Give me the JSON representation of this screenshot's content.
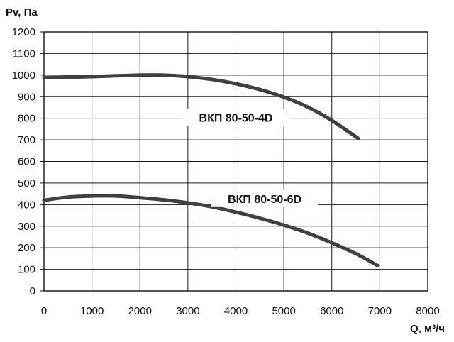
{
  "chart_data": {
    "type": "line",
    "ylabel": "Pv, Па",
    "xlabel": "Q, м³/ч",
    "xlim": [
      0,
      8000
    ],
    "ylim": [
      0,
      1200
    ],
    "x_ticks": [
      0,
      1000,
      2000,
      3000,
      4000,
      5000,
      6000,
      7000,
      8000
    ],
    "y_ticks": [
      0,
      100,
      200,
      300,
      400,
      500,
      600,
      700,
      800,
      900,
      1000,
      1100,
      1200
    ],
    "grid": true,
    "legend": "none",
    "series": [
      {
        "name": "ВКП 80-50-4D",
        "color": "#404040",
        "x": [
          0,
          500,
          1000,
          1500,
          2000,
          2500,
          3000,
          3500,
          4000,
          4500,
          5000,
          5500,
          6000,
          6550
        ],
        "y": [
          988,
          990,
          993,
          997,
          1000,
          1000,
          993,
          980,
          960,
          933,
          898,
          852,
          790,
          707
        ]
      },
      {
        "name": "ВКП 80-50-6D",
        "color": "#404040",
        "x": [
          0,
          500,
          1000,
          1500,
          2000,
          2500,
          3000,
          3500,
          4000,
          4500,
          5000,
          5500,
          6000,
          6500,
          6950
        ],
        "y": [
          420,
          435,
          440,
          440,
          432,
          422,
          408,
          390,
          365,
          337,
          305,
          268,
          223,
          173,
          118
        ]
      }
    ]
  }
}
